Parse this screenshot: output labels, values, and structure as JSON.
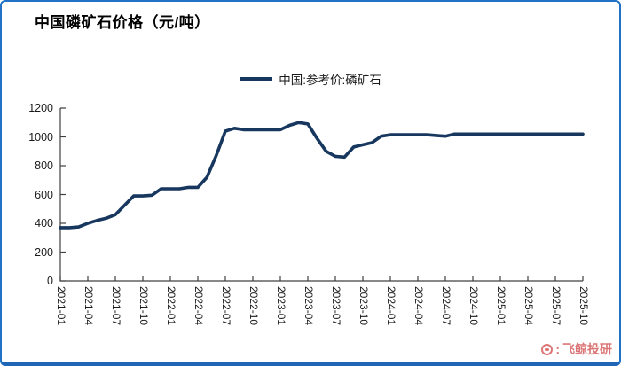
{
  "title": "中国磷矿石价格（元/吨）",
  "legend": {
    "label": "中国:参考价:磷矿石",
    "line_color": "#17375e"
  },
  "watermark": {
    "icon": "whale-logo-icon",
    "separator": ":",
    "text": "飞鲸投研",
    "color": "#d25050"
  },
  "colors": {
    "frame_border": "#2273c5",
    "axis": "#404040",
    "line": "#17375e",
    "background": "#ffffff"
  },
  "chart_data": {
    "type": "line",
    "title": "中国磷矿石价格（元/吨）",
    "xlabel": "",
    "ylabel": "",
    "ylim": [
      0,
      1200
    ],
    "yticks": [
      0,
      200,
      400,
      600,
      800,
      1000,
      1200
    ],
    "grid": false,
    "legend_position": "top-center",
    "xtick_step_months": 3,
    "x": [
      "2021-01",
      "2021-02",
      "2021-03",
      "2021-04",
      "2021-05",
      "2021-06",
      "2021-07",
      "2021-08",
      "2021-09",
      "2021-10",
      "2021-11",
      "2021-12",
      "2022-01",
      "2022-02",
      "2022-03",
      "2022-04",
      "2022-05",
      "2022-06",
      "2022-07",
      "2022-08",
      "2022-09",
      "2022-10",
      "2022-11",
      "2022-12",
      "2023-01",
      "2023-02",
      "2023-03",
      "2023-04",
      "2023-05",
      "2023-06",
      "2023-07",
      "2023-08",
      "2023-09",
      "2023-10",
      "2023-11",
      "2023-12",
      "2024-01",
      "2024-02",
      "2024-03",
      "2024-04",
      "2024-05",
      "2024-06",
      "2024-07",
      "2024-08",
      "2024-09",
      "2024-10",
      "2024-11",
      "2024-12",
      "2025-01",
      "2025-02",
      "2025-03",
      "2025-04",
      "2025-05",
      "2025-06",
      "2025-07",
      "2025-08",
      "2025-09",
      "2025-10"
    ],
    "series": [
      {
        "name": "中国:参考价:磷矿石",
        "color": "#17375e",
        "values": [
          370,
          370,
          375,
          400,
          420,
          435,
          460,
          525,
          590,
          590,
          595,
          640,
          640,
          640,
          650,
          650,
          720,
          870,
          1040,
          1060,
          1050,
          1050,
          1050,
          1050,
          1050,
          1080,
          1100,
          1090,
          990,
          900,
          865,
          860,
          930,
          945,
          960,
          1005,
          1015,
          1015,
          1015,
          1015,
          1015,
          1010,
          1005,
          1020,
          1020,
          1020,
          1020,
          1020,
          1020,
          1020,
          1020,
          1020,
          1020,
          1020,
          1020,
          1020,
          1020,
          1020
        ]
      }
    ]
  }
}
